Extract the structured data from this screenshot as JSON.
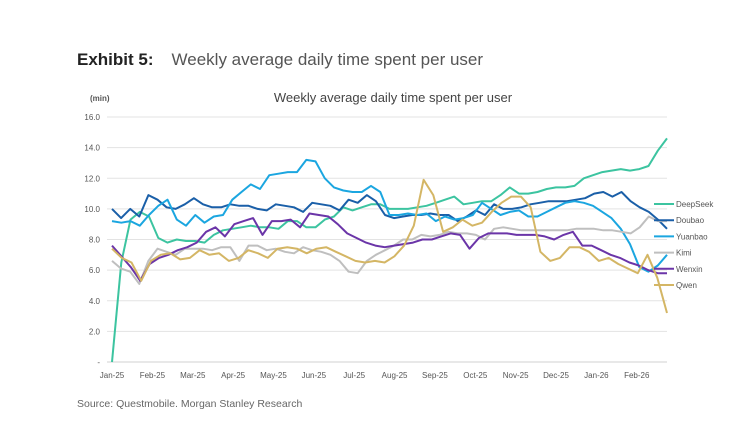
{
  "header": {
    "exhibit_label": "Exhibit 5:",
    "exhibit_title": "Weekly average daily time spent per user"
  },
  "footer": {
    "source": "Source: Questmobile. Morgan Stanley Research"
  },
  "chart_data": {
    "type": "line",
    "title": "Weekly average daily time spent per user",
    "ylabel": "(min)",
    "xlabel": "",
    "ylim": [
      0,
      16
    ],
    "yticks": [
      0,
      2,
      4,
      6,
      8,
      10,
      12,
      14,
      16
    ],
    "ytick_labels": [
      "-",
      "2.0",
      "4.0",
      "6.0",
      "8.0",
      "10.0",
      "12.0",
      "14.0",
      "16.0"
    ],
    "grid": true,
    "legend_position": "right",
    "x_tick_labels": [
      "Jan-25",
      "Feb-25",
      "Mar-25",
      "Apr-25",
      "May-25",
      "Jun-25",
      "Jul-25",
      "Aug-25",
      "Sep-25",
      "Oct-25",
      "Nov-25",
      "Dec-25",
      "Jan-26",
      "Feb-26"
    ],
    "x_points_per_month": 4.35,
    "series": [
      {
        "name": "DeepSeek",
        "color": "#3cc4a0",
        "values": [
          0.0,
          6.5,
          9.3,
          9.8,
          9.5,
          8.1,
          7.8,
          8.0,
          7.9,
          7.9,
          7.8,
          8.3,
          8.6,
          8.7,
          8.8,
          8.9,
          8.8,
          8.8,
          8.7,
          9.2,
          9.2,
          8.8,
          8.8,
          9.3,
          9.5,
          10.1,
          9.9,
          10.1,
          10.3,
          10.3,
          10.0,
          10.0,
          10.0,
          10.1,
          10.2,
          10.4,
          10.6,
          10.8,
          10.3,
          10.4,
          10.5,
          10.5,
          10.9,
          11.4,
          11.0,
          11.0,
          11.1,
          11.3,
          11.4,
          11.4,
          11.5,
          12.0,
          12.2,
          12.4,
          12.5,
          12.6,
          12.5,
          12.6,
          12.8,
          13.8,
          14.6
        ]
      },
      {
        "name": "Doubao",
        "color": "#1a5fa8",
        "values": [
          10.0,
          9.4,
          10.0,
          9.5,
          10.9,
          10.6,
          10.1,
          10.0,
          10.3,
          10.7,
          10.3,
          10.1,
          10.1,
          10.3,
          10.2,
          10.2,
          10.0,
          9.9,
          10.3,
          10.2,
          10.1,
          9.8,
          10.4,
          10.3,
          10.2,
          9.9,
          10.6,
          10.4,
          10.9,
          10.5,
          9.6,
          9.4,
          9.5,
          9.6,
          9.6,
          9.7,
          9.6,
          9.6,
          9.2,
          9.5,
          9.9,
          9.6,
          10.3,
          10.0,
          10.0,
          10.1,
          10.3,
          10.4,
          10.5,
          10.5,
          10.5,
          10.6,
          10.7,
          11.0,
          11.1,
          10.8,
          11.1,
          10.5,
          10.1,
          9.8,
          9.3,
          8.7
        ]
      },
      {
        "name": "Yuanbao",
        "color": "#1ba6e0",
        "values": [
          9.2,
          9.1,
          9.2,
          8.9,
          9.6,
          10.2,
          10.6,
          9.3,
          8.9,
          9.6,
          9.1,
          9.5,
          9.6,
          10.6,
          11.1,
          11.6,
          11.3,
          12.2,
          12.3,
          12.4,
          12.4,
          13.2,
          13.1,
          12.0,
          11.4,
          11.2,
          11.1,
          11.1,
          11.5,
          11.1,
          9.6,
          9.6,
          9.7,
          9.6,
          9.7,
          9.2,
          9.5,
          9.3,
          9.4,
          9.6,
          10.4,
          10.0,
          9.6,
          9.8,
          9.9,
          9.5,
          9.5,
          9.8,
          10.1,
          10.4,
          10.5,
          10.4,
          10.2,
          9.8,
          9.4,
          8.7,
          7.7,
          6.2,
          5.9,
          6.3,
          7.0
        ]
      },
      {
        "name": "Kimi",
        "color": "#bfbfbf",
        "values": [
          6.6,
          6.1,
          5.9,
          5.1,
          6.6,
          7.4,
          7.2,
          7.0,
          7.4,
          7.4,
          7.4,
          7.3,
          7.5,
          7.5,
          6.6,
          7.6,
          7.6,
          7.3,
          7.4,
          7.2,
          7.1,
          7.5,
          7.3,
          7.2,
          7.0,
          6.6,
          5.9,
          5.8,
          6.6,
          7.0,
          7.3,
          7.6,
          8.0,
          8.0,
          8.3,
          8.2,
          8.3,
          8.5,
          8.4,
          8.4,
          8.3,
          8.0,
          8.7,
          8.8,
          8.7,
          8.6,
          8.6,
          8.6,
          8.6,
          8.6,
          8.6,
          8.7,
          8.7,
          8.7,
          8.6,
          8.6,
          8.5,
          8.4,
          8.8,
          9.5,
          9.2,
          9.2
        ]
      },
      {
        "name": "Wenxin",
        "color": "#6b35a8",
        "values": [
          7.6,
          6.9,
          6.2,
          5.3,
          6.4,
          6.8,
          7.0,
          7.3,
          7.5,
          7.8,
          8.5,
          8.8,
          8.2,
          9.0,
          9.2,
          9.4,
          8.3,
          9.2,
          9.2,
          9.3,
          8.8,
          9.7,
          9.6,
          9.5,
          9.0,
          8.4,
          8.1,
          7.8,
          7.6,
          7.5,
          7.6,
          7.7,
          7.8,
          8.0,
          8.0,
          8.2,
          8.4,
          8.3,
          7.4,
          8.1,
          8.4,
          8.4,
          8.4,
          8.3,
          8.3,
          8.3,
          8.2,
          8.0,
          8.3,
          8.5,
          7.6,
          7.6,
          7.3,
          7.0,
          6.8,
          6.5,
          6.3,
          6.0,
          5.8,
          5.8
        ]
      },
      {
        "name": "Qwen",
        "color": "#d4b665",
        "values": [
          7.4,
          6.8,
          6.5,
          5.3,
          6.6,
          7.0,
          7.1,
          6.7,
          6.8,
          7.3,
          7.0,
          7.1,
          6.6,
          6.8,
          7.3,
          7.1,
          6.8,
          7.4,
          7.5,
          7.4,
          7.1,
          7.4,
          7.5,
          7.2,
          6.9,
          6.6,
          6.5,
          6.6,
          6.5,
          6.9,
          7.6,
          8.9,
          11.9,
          10.9,
          8.5,
          8.8,
          9.3,
          8.9,
          9.1,
          9.8,
          10.4,
          10.8,
          10.8,
          10.1,
          7.2,
          6.6,
          6.8,
          7.5,
          7.5,
          7.2,
          6.6,
          6.8,
          6.4,
          6.1,
          5.8,
          7.0,
          5.5,
          3.2
        ]
      }
    ]
  }
}
